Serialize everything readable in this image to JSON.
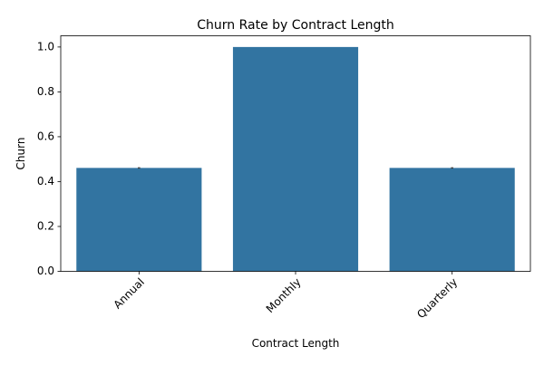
{
  "chart_data": {
    "type": "bar",
    "title": "Churn Rate by Contract Length",
    "xlabel": "Contract Length",
    "ylabel": "Churn",
    "categories": [
      "Annual",
      "Monthly",
      "Quarterly"
    ],
    "values": [
      0.461,
      1.0,
      0.461
    ],
    "error_range": [
      [
        0.458,
        0.464
      ],
      null,
      [
        0.458,
        0.464
      ]
    ],
    "ylim": [
      0,
      1.05
    ],
    "yticks": [
      "0.0",
      "0.2",
      "0.4",
      "0.6",
      "0.8",
      "1.0"
    ],
    "xtick_rotation": 45,
    "grid": false,
    "legend": "none",
    "bar_color": "#3274a1",
    "error_color": "#424242"
  }
}
